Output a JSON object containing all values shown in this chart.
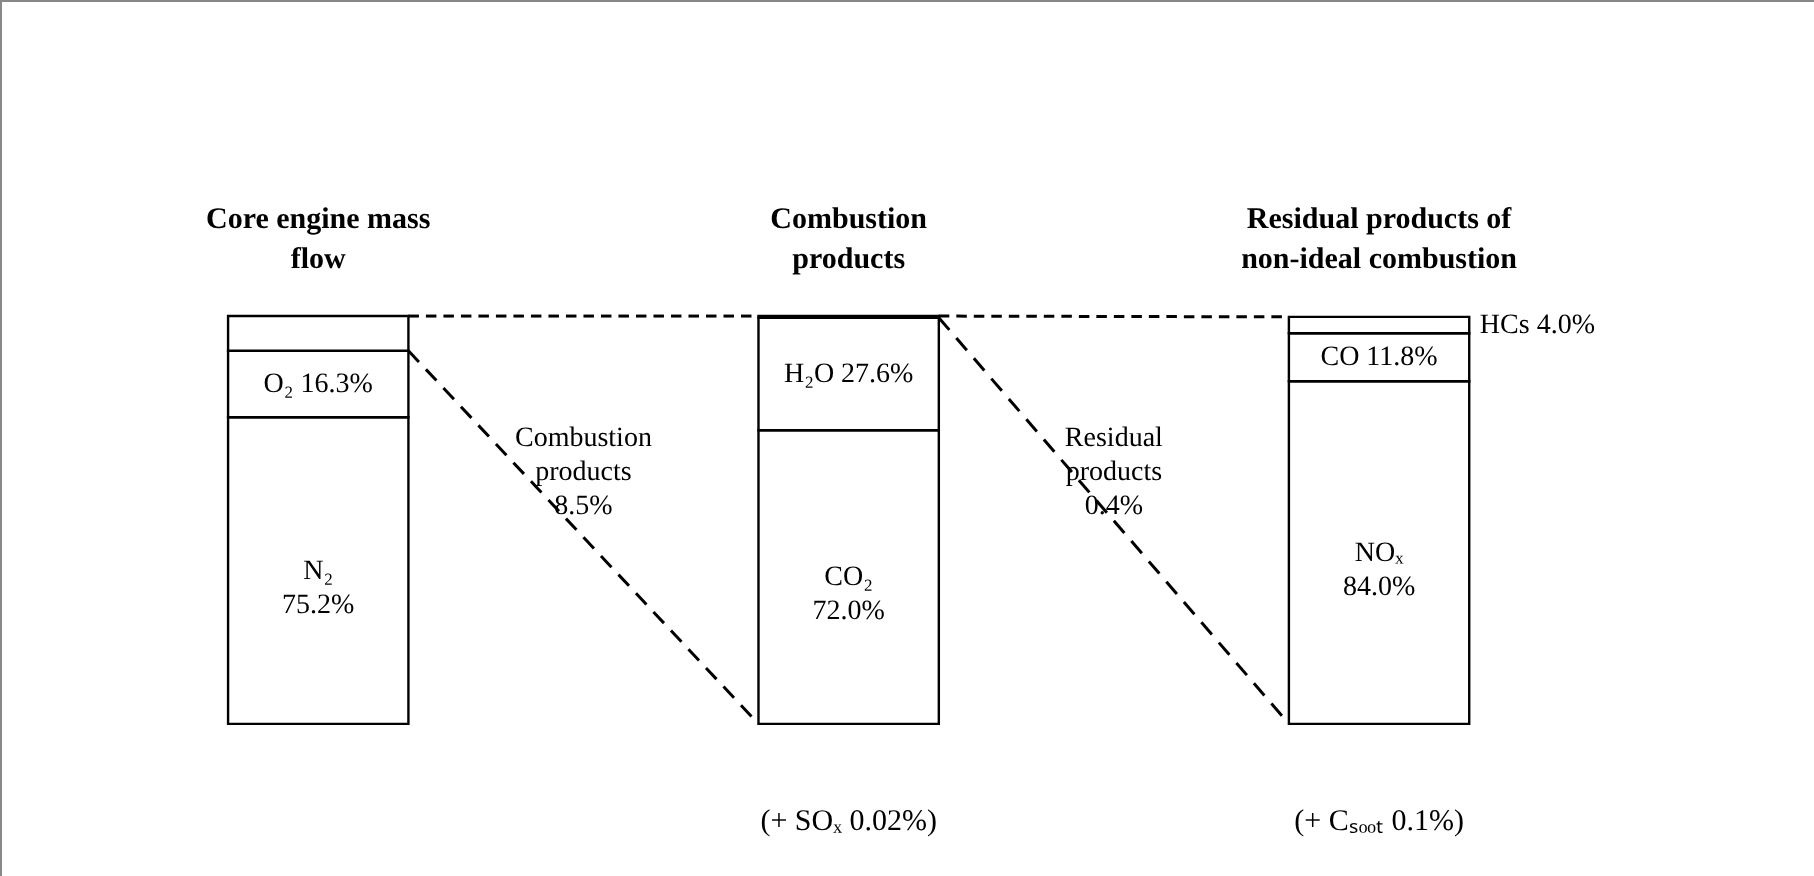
{
  "chart_data": {
    "type": "bar",
    "stacked": true,
    "tick_labels": false,
    "categories": [
      "Core engine mass\nflow",
      "Combustion\nproducts",
      "Residual products of\nnon-ideal combustion"
    ],
    "series": [
      {
        "color": "#ffffff",
        "values": [
          75.2,
          72.0,
          84.0
        ],
        "value_labels": [
          "N₂\n75.2%",
          "CO₂\n72.0%",
          "NOₓ\n84.0%"
        ]
      },
      {
        "color": "#ffffff",
        "values": [
          16.3,
          27.6,
          11.8
        ],
        "value_labels": [
          "O₂  16.3%",
          "H₂O  27.6%",
          "CO  11.8%"
        ]
      },
      {
        "color": "#ffffff",
        "values": [
          8.5,
          0.4,
          4.0
        ]
      }
    ],
    "annotations": [
      "Combustion\nproducts\n\n8.5%",
      "Residual\nproducts\n\n0.4%",
      "HCs 4.0%",
      "(+ SOₓ 0.02%)",
      "(+ Cₛₒₒₜ 0.1%)"
    ]
  }
}
